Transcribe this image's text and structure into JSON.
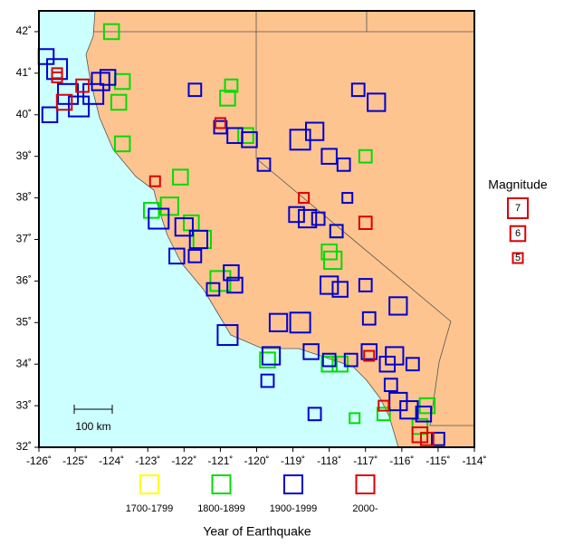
{
  "chart_data": {
    "type": "scatter",
    "xlim": [
      -126,
      -114
    ],
    "ylim": [
      32,
      42.5
    ],
    "xticks": [
      {
        "value": -126,
        "label": "-126˚"
      },
      {
        "value": -125,
        "label": "-125˚"
      },
      {
        "value": -124,
        "label": "-124˚"
      },
      {
        "value": -123,
        "label": "-123˚"
      },
      {
        "value": -122,
        "label": "-122˚"
      },
      {
        "value": -121,
        "label": "-121˚"
      },
      {
        "value": -120,
        "label": "-120˚"
      },
      {
        "value": -119,
        "label": "-119˚"
      },
      {
        "value": -118,
        "label": "-118˚"
      },
      {
        "value": -117,
        "label": "-117˚"
      },
      {
        "value": -116,
        "label": "-116˚"
      },
      {
        "value": -115,
        "label": "-115˚"
      },
      {
        "value": -114,
        "label": "-114˚"
      }
    ],
    "yticks": [
      {
        "value": 32,
        "label": "32˚"
      },
      {
        "value": 33,
        "label": "33˚"
      },
      {
        "value": 34,
        "label": "34˚"
      },
      {
        "value": 35,
        "label": "35˚"
      },
      {
        "value": 36,
        "label": "36˚"
      },
      {
        "value": 37,
        "label": "37˚"
      },
      {
        "value": 38,
        "label": "38˚"
      },
      {
        "value": 39,
        "label": "39˚"
      },
      {
        "value": 40,
        "label": "40˚"
      },
      {
        "value": 41,
        "label": "41˚"
      },
      {
        "value": 42,
        "label": "42˚"
      }
    ],
    "legend_title": "Year of Earthquake",
    "size_legend": {
      "title": "Magnitude",
      "values": [
        7,
        6,
        5
      ]
    },
    "scale_bar": "100 km",
    "series": [
      {
        "name": "1700-1799",
        "color": "#ffff00",
        "x": [],
        "values": [],
        "sizes": []
      },
      {
        "name": "1800-1899",
        "color": "#00dd00",
        "x": [
          -124,
          -123.7,
          -123.8,
          -123.7,
          -120.8,
          -120.7,
          -122.1,
          -122.4,
          -121.8,
          -121.5,
          -121,
          -120.3,
          -117,
          -117.8,
          -118,
          -117.9,
          -118,
          -119.7,
          -117.7,
          -116.5,
          -117.3,
          -115.3,
          -115.5,
          -122.9
        ],
        "values": [
          42,
          40.8,
          40.3,
          39.3,
          40.4,
          40.7,
          38.5,
          37.8,
          37.4,
          37,
          36,
          39.5,
          39,
          37.2,
          36.7,
          36.5,
          34,
          34.1,
          34,
          32.8,
          32.7,
          33,
          32.5,
          37.7
        ],
        "sizes": [
          6,
          6,
          6,
          6,
          6,
          5.5,
          6,
          6.5,
          6,
          6.5,
          7,
          6,
          5.5,
          5.5,
          6,
          6.5,
          6,
          6,
          6,
          5.5,
          5,
          6,
          6,
          6
        ]
      },
      {
        "name": "1900-1999",
        "color": "#0000cc",
        "x": [
          -125.8,
          -125.5,
          -125.2,
          -124.9,
          -124.5,
          -124.3,
          -124.1,
          -125.7,
          -121.7,
          -121,
          -120.6,
          -120.2,
          -119.8,
          -118.8,
          -118.4,
          -118,
          -117.6,
          -117.2,
          -116.7,
          -118.9,
          -118.6,
          -118.3,
          -117.8,
          -117.5,
          -122.7,
          -122,
          -121.6,
          -122.2,
          -121.7,
          -120.7,
          -120.6,
          -121.2,
          -117.7,
          -118,
          -117,
          -119.4,
          -118.8,
          -116.9,
          -116.1,
          -120.8,
          -119.6,
          -118.5,
          -118,
          -117.4,
          -116.9,
          -116.4,
          -116.2,
          -115.7,
          -119.7,
          -118.4,
          -116.3,
          -116.1,
          -115.8,
          -115.4,
          -115
        ],
        "values": [
          41.4,
          41.1,
          40.5,
          40.2,
          40.5,
          40.8,
          40.9,
          40,
          40.6,
          39.7,
          39.5,
          39.4,
          38.8,
          39.4,
          39.6,
          39,
          38.8,
          40.6,
          40.3,
          37.6,
          37.5,
          37.5,
          37.2,
          38,
          37.5,
          37.3,
          37,
          36.6,
          36.6,
          36.2,
          35.9,
          35.8,
          35.8,
          35.9,
          35.9,
          35,
          35,
          35.1,
          35.4,
          34.7,
          34.2,
          34.3,
          34.1,
          34.1,
          34.3,
          34,
          34.2,
          34,
          33.6,
          32.8,
          33.5,
          33.1,
          32.9,
          32.8,
          32.2
        ],
        "sizes": [
          6,
          7,
          7,
          7,
          7,
          6.5,
          6,
          6,
          5.5,
          5.5,
          6,
          6,
          5.5,
          7,
          6.5,
          6,
          5.5,
          5.5,
          6.5,
          6,
          6.5,
          5.5,
          5.5,
          5,
          7,
          6.5,
          6.5,
          6,
          5.5,
          6,
          6,
          5.5,
          6,
          6.5,
          5.5,
          6.5,
          7,
          5.5,
          6.5,
          7,
          6.5,
          6,
          5.5,
          5.5,
          6,
          6,
          6.5,
          5.5,
          5.5,
          5.5,
          5.5,
          6.5,
          6.5,
          6,
          5.5
        ]
      },
      {
        "name": "2000-",
        "color": "#dd0000",
        "x": [
          -125.5,
          -125.3,
          -124.8,
          -121,
          -122.8,
          -118.7,
          -117,
          -116.9,
          -116.5,
          -115.5,
          -115.3,
          -125.5
        ],
        "values": [
          40.9,
          40.3,
          40.7,
          39.8,
          38.4,
          38,
          37.4,
          34.2,
          33,
          32.3,
          32.2,
          41
        ],
        "sizes": [
          5,
          6,
          5.5,
          5,
          5,
          5,
          5.5,
          5,
          5,
          6,
          5.5,
          5
        ]
      }
    ]
  }
}
